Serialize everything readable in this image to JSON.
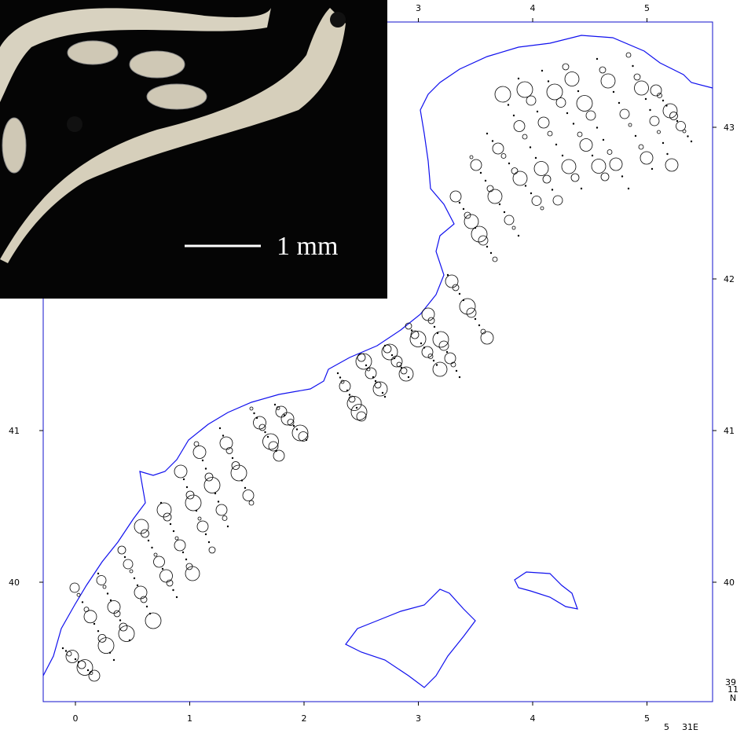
{
  "map": {
    "bottom_ticks": [
      0,
      1,
      2,
      3,
      4,
      5
    ],
    "top_ticks": [
      3,
      4,
      5
    ],
    "left_ticks": [
      40,
      41
    ],
    "right_ticks": [
      40,
      41,
      42,
      43
    ],
    "corner_lat": "39",
    "corner_min": "11",
    "corner_n": "N",
    "corner_lon": "5",
    "corner_e": "31E"
  },
  "photo": {
    "scale_label": "1 mm"
  }
}
